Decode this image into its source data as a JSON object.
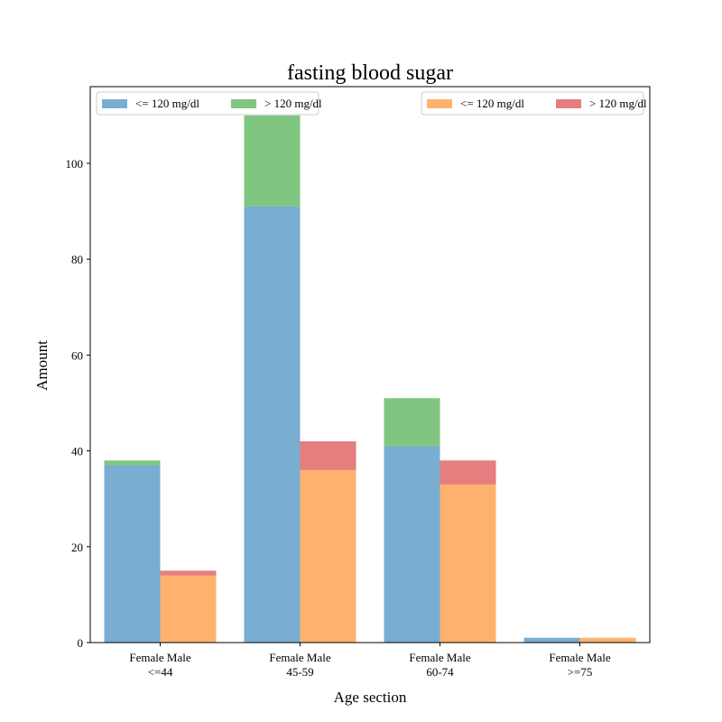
{
  "chart_data": {
    "type": "bar",
    "title": "fasting blood sugar",
    "xlabel": "Age section",
    "ylabel": "Amount",
    "ylim": [
      0,
      116
    ],
    "yticks": [
      0,
      20,
      40,
      60,
      80,
      100
    ],
    "grid": false,
    "categories": [
      {
        "line1": "Female Male",
        "line2": "<=44"
      },
      {
        "line1": "Female Male",
        "line2": "45-59"
      },
      {
        "line1": "Female Male",
        "line2": "60-74"
      },
      {
        "line1": "Female Male",
        "line2": ">=75"
      }
    ],
    "groups": [
      {
        "side": "left",
        "legend_position": "top-left",
        "series": [
          {
            "name": "<= 120 mg/dl",
            "color": "#1f77b4",
            "values": [
              37,
              91,
              41,
              1
            ]
          },
          {
            "name": "> 120 mg/dl",
            "color": "#2ca02c",
            "values": [
              1,
              19,
              10,
              0
            ]
          }
        ]
      },
      {
        "side": "right",
        "legend_position": "top-right",
        "series": [
          {
            "name": "<= 120 mg/dl",
            "color": "#ff7f0e",
            "values": [
              14,
              36,
              33,
              1
            ]
          },
          {
            "name": "> 120 mg/dl",
            "color": "#d62728",
            "values": [
              1,
              6,
              5,
              0
            ]
          }
        ]
      }
    ]
  }
}
